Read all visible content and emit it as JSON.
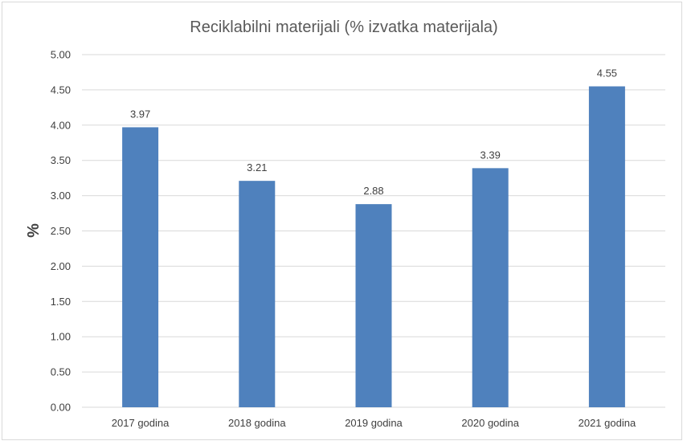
{
  "chart_data": {
    "type": "bar",
    "title": "Reciklabilni materijali (% izvatka materijala)",
    "ylabel": "%",
    "xlabel": "",
    "categories": [
      "2017 godina",
      "2018 godina",
      "2019 godina",
      "2020 godina",
      "2021 godina"
    ],
    "values": [
      3.97,
      3.21,
      2.88,
      3.39,
      4.55
    ],
    "data_labels": [
      "3.97",
      "3.21",
      "2.88",
      "3.39",
      "4.55"
    ],
    "ylim": [
      0,
      5
    ],
    "yticks": [
      "0.00",
      "0.50",
      "1.00",
      "1.50",
      "2.00",
      "2.50",
      "3.00",
      "3.50",
      "4.00",
      "4.50",
      "5.00"
    ],
    "grid": true,
    "legend": "none",
    "bar_color": "#4f81bd"
  }
}
